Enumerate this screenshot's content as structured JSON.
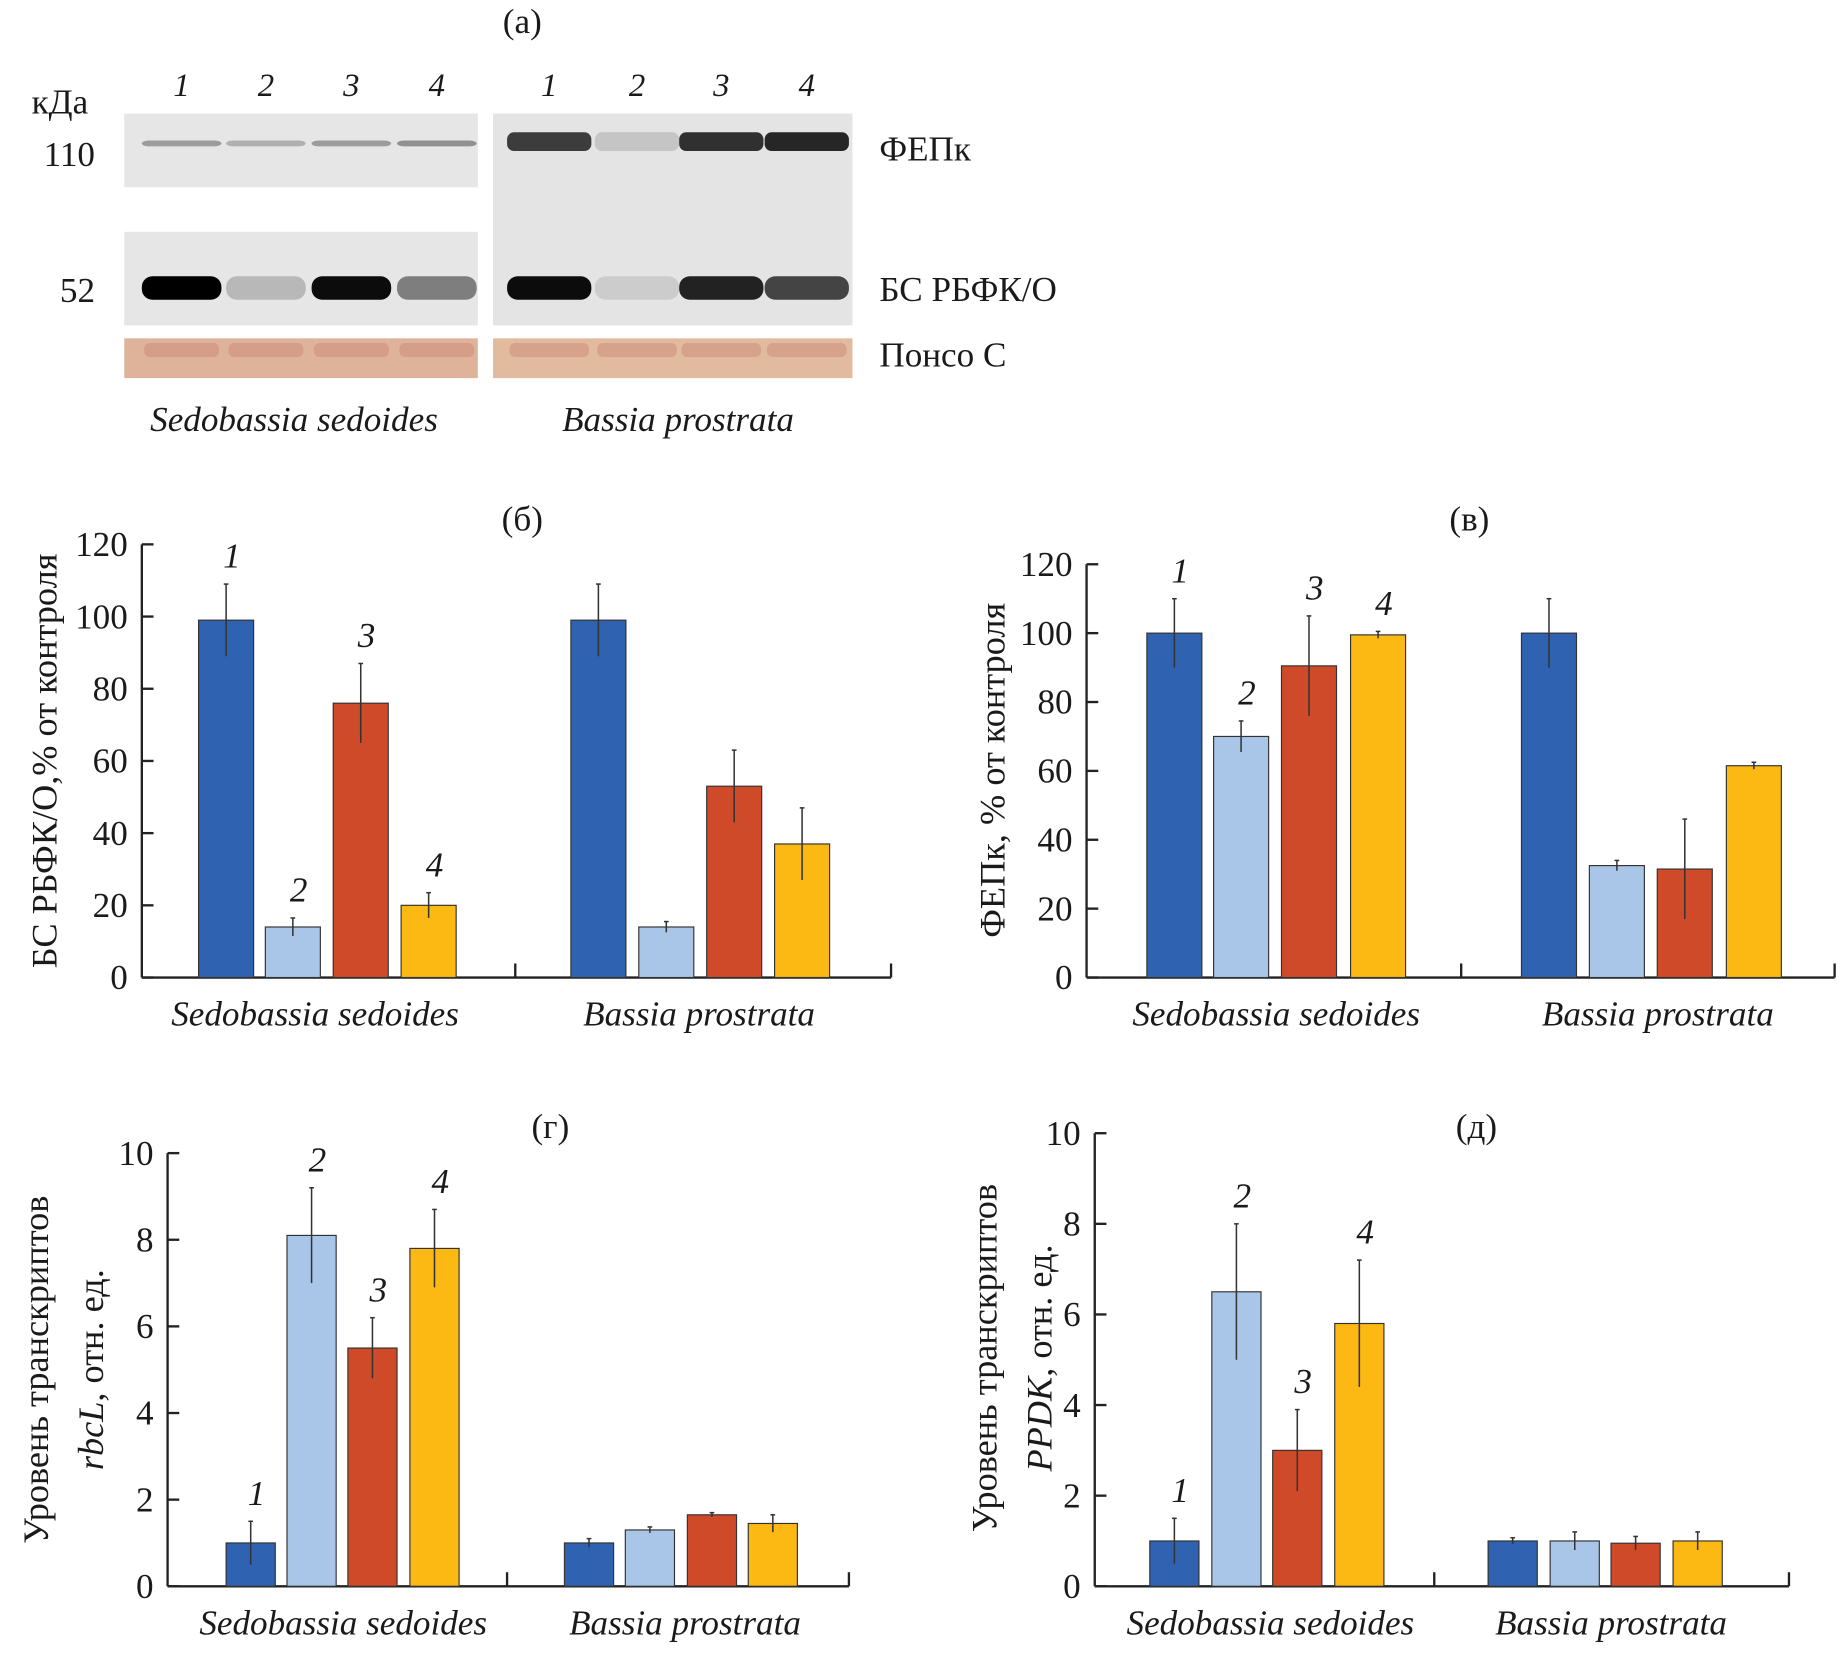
{
  "colors": {
    "c1": "#2f62b0",
    "c2": "#a9c6e8",
    "c3": "#cf4a28",
    "c4": "#fcb813",
    "axis": "#222222"
  },
  "blot": {
    "panel_label": "(а)",
    "unit_label": "кДа",
    "mw_markers": [
      "110",
      "52"
    ],
    "lane_numbers": [
      "1",
      "2",
      "3",
      "4",
      "1",
      "2",
      "3",
      "4"
    ],
    "band_labels": [
      "ФЕПк",
      "БС РБФК/О",
      "Понсо С"
    ],
    "species": [
      "Sedobassia sedoides",
      "Bassia prostrata"
    ],
    "band_intensity_top": [
      0.35,
      0.25,
      0.35,
      0.4,
      0.8,
      0.15,
      0.85,
      0.9
    ],
    "band_intensity_bottom": [
      1.0,
      0.2,
      0.95,
      0.45,
      0.95,
      0.1,
      0.85,
      0.7
    ]
  },
  "chart_data": [
    {
      "type": "bar",
      "panel_label": "(б)",
      "ylabel": "БС РБФК/О,% от контроля",
      "ylim": [
        0,
        120
      ],
      "yticks": [
        "0",
        "20",
        "40",
        "60",
        "80",
        "100",
        "120"
      ],
      "categories": [
        "Sedobassia sedoides",
        "Bassia prostrata"
      ],
      "bar_labels": [
        "1",
        "2",
        "3",
        "4"
      ],
      "series": [
        {
          "name": "1",
          "values": [
            99,
            99
          ],
          "errors": [
            10,
            10
          ]
        },
        {
          "name": "2",
          "values": [
            14,
            14
          ],
          "errors": [
            2.5,
            1.5
          ]
        },
        {
          "name": "3",
          "values": [
            76,
            53
          ],
          "errors": [
            11,
            10
          ]
        },
        {
          "name": "4",
          "values": [
            20,
            37
          ],
          "errors": [
            3.5,
            10
          ]
        }
      ]
    },
    {
      "type": "bar",
      "panel_label": "(в)",
      "ylabel": "ФЕПк, % от контроля",
      "ylim": [
        0,
        120
      ],
      "yticks": [
        "0",
        "20",
        "40",
        "60",
        "80",
        "100",
        "120"
      ],
      "categories": [
        "Sedobassia sedoides",
        "Bassia prostrata"
      ],
      "bar_labels": [
        "1",
        "2",
        "3",
        "4"
      ],
      "series": [
        {
          "name": "1",
          "values": [
            100,
            100
          ],
          "errors": [
            10,
            10
          ]
        },
        {
          "name": "2",
          "values": [
            70,
            32.5
          ],
          "errors": [
            4.5,
            1.5
          ]
        },
        {
          "name": "3",
          "values": [
            90.5,
            31.5
          ],
          "errors": [
            14.5,
            14.5
          ]
        },
        {
          "name": "4",
          "values": [
            99.5,
            61.5
          ],
          "errors": [
            1,
            1
          ]
        }
      ]
    },
    {
      "type": "bar",
      "panel_label": "(г)",
      "ylabel_line1": "Уровень транскриптов",
      "ylabel_italic": "rbcL",
      "ylabel_rest": ", отн. ед.",
      "ylim": [
        0,
        10
      ],
      "yticks": [
        "0",
        "2",
        "4",
        "6",
        "8",
        "10"
      ],
      "categories": [
        "Sedobassia sedoides",
        "Bassia prostrata"
      ],
      "bar_labels": [
        "1",
        "2",
        "3",
        "4"
      ],
      "series": [
        {
          "name": "1",
          "values": [
            1,
            1
          ],
          "errors": [
            0.5,
            0.1
          ]
        },
        {
          "name": "2",
          "values": [
            8.1,
            1.3
          ],
          "errors": [
            1.1,
            0.07
          ]
        },
        {
          "name": "3",
          "values": [
            5.5,
            1.65
          ],
          "errors": [
            0.7,
            0.05
          ]
        },
        {
          "name": "4",
          "values": [
            7.8,
            1.45
          ],
          "errors": [
            0.9,
            0.2
          ]
        }
      ]
    },
    {
      "type": "bar",
      "panel_label": "(д)",
      "ylabel_line1": "Уровень транскриптов",
      "ylabel_italic": "PPDK",
      "ylabel_rest": ", отн. ед.",
      "ylim": [
        0,
        10
      ],
      "yticks": [
        "0",
        "2",
        "4",
        "6",
        "8",
        "10"
      ],
      "categories": [
        "Sedobassia sedoides",
        "Bassia prostrata"
      ],
      "bar_labels": [
        "1",
        "2",
        "3",
        "4"
      ],
      "series": [
        {
          "name": "1",
          "values": [
            1,
            1
          ],
          "errors": [
            0.5,
            0.07
          ]
        },
        {
          "name": "2",
          "values": [
            6.5,
            1
          ],
          "errors": [
            1.5,
            0.2
          ]
        },
        {
          "name": "3",
          "values": [
            3,
            0.95
          ],
          "errors": [
            0.9,
            0.15
          ]
        },
        {
          "name": "4",
          "values": [
            5.8,
            1
          ],
          "errors": [
            1.4,
            0.2
          ]
        }
      ]
    }
  ]
}
